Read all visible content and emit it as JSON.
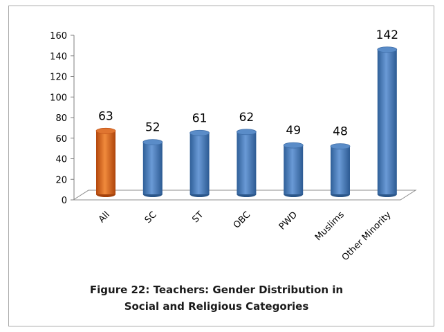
{
  "chart_data": {
    "type": "bar",
    "categories": [
      "All",
      "SC",
      "ST",
      "OBC",
      "PWD",
      "Muslims",
      "Other Minority"
    ],
    "values": [
      63,
      52,
      61,
      62,
      49,
      48,
      142
    ],
    "data_labels": [
      "63",
      "52",
      "61",
      "62",
      "49",
      "48",
      "142"
    ],
    "ylim": [
      0,
      160
    ],
    "yticks": [
      "0",
      "20",
      "40",
      "60",
      "80",
      "100",
      "120",
      "140",
      "160"
    ],
    "grid": false,
    "legend": "none",
    "colors": {
      "highlight": "#d4601a",
      "bar": "#4a7ebb"
    },
    "caption_lines": [
      "Figure 22: Teachers: Gender Distribution in",
      "Social and Religious Categories"
    ]
  }
}
